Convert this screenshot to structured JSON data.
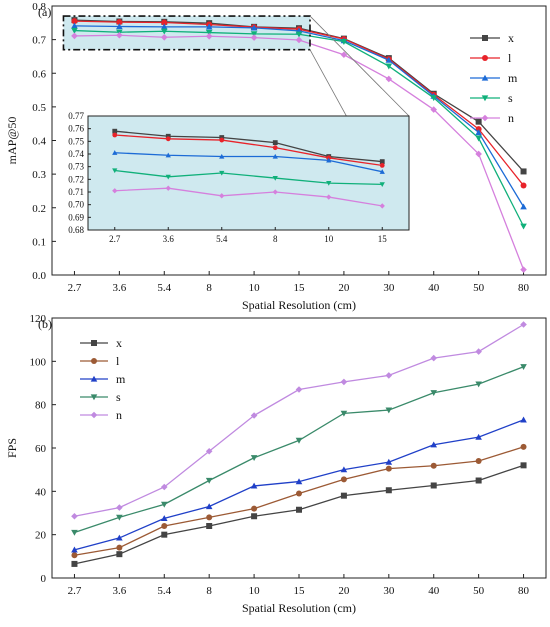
{
  "chart_data": [
    {
      "panel": "(a)",
      "type": "line",
      "categories": [
        "2.7",
        "3.6",
        "5.4",
        "8",
        "10",
        "15",
        "20",
        "30",
        "40",
        "50",
        "80"
      ],
      "xlabel": "Spatial Resolution (cm)",
      "ylabel": "mAP@50",
      "ylim": [
        0.0,
        0.8
      ],
      "yticks": [
        "0.0",
        "0.1",
        "0.2",
        "0.3",
        "0.4",
        "0.5",
        "0.6",
        "0.7",
        "0.8"
      ],
      "legend_placement": "top-right",
      "series": [
        {
          "name": "x",
          "color": "#444444",
          "marker": "square",
          "values": [
            0.758,
            0.754,
            0.753,
            0.749,
            0.738,
            0.734,
            0.703,
            0.645,
            0.539,
            0.456,
            0.308
          ]
        },
        {
          "name": "l",
          "color": "#e8232a",
          "marker": "circle",
          "values": [
            0.755,
            0.752,
            0.751,
            0.745,
            0.737,
            0.731,
            0.702,
            0.642,
            0.536,
            0.434,
            0.266
          ]
        },
        {
          "name": "m",
          "color": "#1c6bd6",
          "marker": "triangle-up",
          "values": [
            0.741,
            0.739,
            0.738,
            0.738,
            0.735,
            0.726,
            0.697,
            0.639,
            0.532,
            0.424,
            0.203
          ]
        },
        {
          "name": "s",
          "color": "#10b07a",
          "marker": "triangle-down",
          "values": [
            0.727,
            0.722,
            0.725,
            0.721,
            0.717,
            0.716,
            0.694,
            0.621,
            0.527,
            0.407,
            0.145
          ]
        },
        {
          "name": "n",
          "color": "#d580dd",
          "marker": "diamond",
          "values": [
            0.711,
            0.713,
            0.707,
            0.71,
            0.706,
            0.699,
            0.655,
            0.583,
            0.492,
            0.36,
            0.016
          ]
        }
      ],
      "inset": {
        "categories": [
          "2.7",
          "3.6",
          "5.4",
          "8",
          "10",
          "15"
        ],
        "ylim": [
          0.68,
          0.77
        ],
        "yticks": [
          "0.68",
          "0.69",
          "0.70",
          "0.71",
          "0.72",
          "0.73",
          "0.74",
          "0.75",
          "0.76",
          "0.77"
        ]
      }
    },
    {
      "panel": "(b)",
      "type": "line",
      "categories": [
        "2.7",
        "3.6",
        "5.4",
        "8",
        "10",
        "15",
        "20",
        "30",
        "40",
        "50",
        "80"
      ],
      "xlabel": "Spatial Resolution (cm)",
      "ylabel": "FPS",
      "ylim": [
        0,
        120
      ],
      "yticks": [
        "0",
        "20",
        "40",
        "60",
        "80",
        "100",
        "120"
      ],
      "legend_placement": "top-left",
      "series": [
        {
          "name": "x",
          "color": "#444444",
          "marker": "square",
          "values": [
            6.5,
            11,
            20,
            24,
            28.5,
            31.5,
            38,
            40.5,
            42.7,
            45,
            52
          ]
        },
        {
          "name": "l",
          "color": "#9c5a35",
          "marker": "circle",
          "values": [
            10.5,
            14,
            24,
            28,
            32,
            39,
            45.5,
            50.5,
            51.8,
            54,
            60.5
          ]
        },
        {
          "name": "m",
          "color": "#2040c8",
          "marker": "triangle-up",
          "values": [
            13,
            18.5,
            27.5,
            33,
            42.5,
            44.5,
            50,
            53.5,
            61.5,
            65,
            73
          ]
        },
        {
          "name": "s",
          "color": "#3a8a6a",
          "marker": "triangle-down",
          "values": [
            21,
            28,
            34,
            45,
            55.5,
            63.5,
            76,
            77.5,
            85.5,
            89.5,
            97.5
          ]
        },
        {
          "name": "n",
          "color": "#c08ae0",
          "marker": "diamond",
          "values": [
            28.5,
            32.5,
            42,
            58.5,
            75,
            87,
            90.5,
            93.5,
            101.5,
            104.5,
            117
          ]
        }
      ]
    }
  ]
}
